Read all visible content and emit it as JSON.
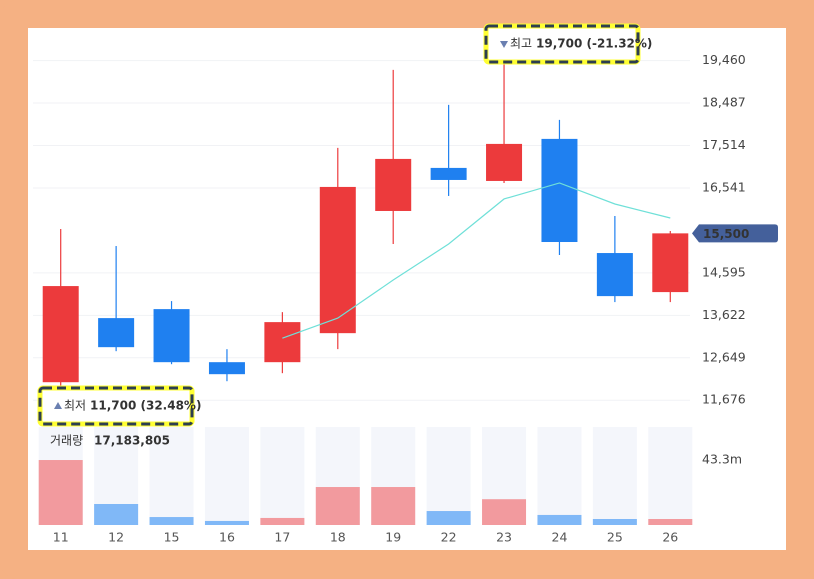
{
  "chart_data": {
    "type": "candlestick",
    "categories": [
      "11",
      "12",
      "15",
      "16",
      "17",
      "18",
      "19",
      "22",
      "23",
      "24",
      "25",
      "26"
    ],
    "open": [
      12089,
      13558,
      13764,
      12548,
      12548,
      13213,
      16013,
      17000,
      16701,
      17665,
      15049,
      14154
    ],
    "high": [
      15600,
      15210,
      13948,
      12846,
      13695,
      17458,
      19248,
      18445,
      19700,
      18101,
      15898,
      15554
    ],
    "low": [
      11700,
      12800,
      12502,
      12112,
      12296,
      12846,
      15256,
      16357,
      16655,
      15003,
      13925,
      13925
    ],
    "close": [
      14292,
      12892,
      12548,
      12273,
      13466,
      16564,
      17206,
      16724,
      17550,
      15302,
      14062,
      15500
    ],
    "up_color": "#ec3a3c",
    "down_color": "#1f80f0",
    "moving_average": {
      "color": "#6fe0d8",
      "values": [
        null,
        null,
        null,
        null,
        13099,
        13558,
        14430,
        15256,
        16288,
        16655,
        16173,
        15852
      ]
    },
    "ylim": [
      11200,
      20000
    ],
    "yticks": [
      {
        "value": 11676,
        "label": "11,676"
      },
      {
        "value": 12649,
        "label": "12,649"
      },
      {
        "value": 13622,
        "label": "13,622"
      },
      {
        "value": 14595,
        "label": "14,595"
      },
      {
        "value": 16541,
        "label": "16,541"
      },
      {
        "value": 17514,
        "label": "17,514"
      },
      {
        "value": 18487,
        "label": "18,487"
      },
      {
        "value": 19460,
        "label": "19,460"
      }
    ],
    "grid": true,
    "current_price": {
      "value": 15500,
      "label": "15,500",
      "color": "#44609b"
    },
    "low_annotation": {
      "label": "최저",
      "value": "11,700 (32.48%)"
    },
    "high_annotation": {
      "label": "최고",
      "value": "19,700 (-21.32%)"
    },
    "volume": {
      "values": [
        43.3,
        14,
        5.3,
        2.7,
        4.7,
        25.3,
        25.3,
        9.3,
        17.183805,
        6.7,
        4,
        4
      ],
      "up_color": "#f29a9e",
      "down_color": "#80b8f7",
      "ylim": [
        0,
        65.3
      ],
      "yticks": [
        {
          "value": 43.3,
          "label": "43.3m"
        }
      ],
      "caption": "거래량",
      "caption_value": "17,183,805"
    }
  }
}
